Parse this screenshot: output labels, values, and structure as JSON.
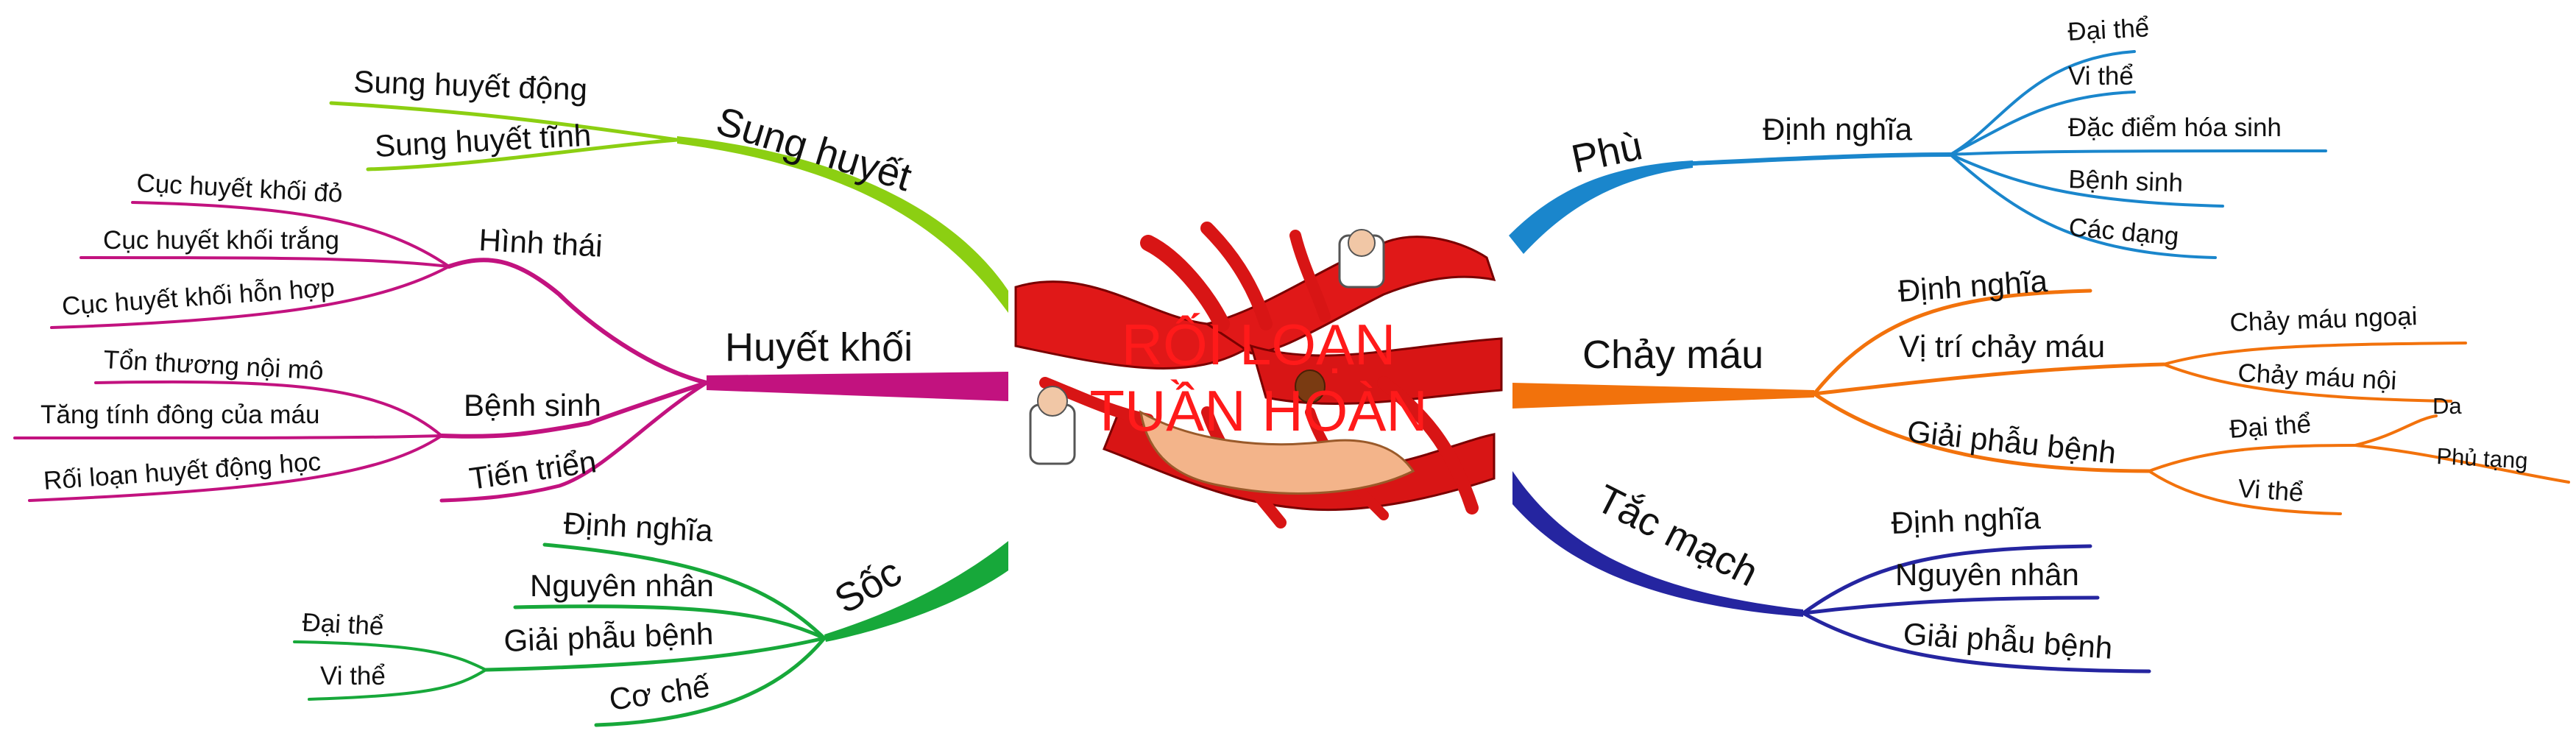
{
  "title": [
    "RỐI LOẠN",
    "TUẦN HOÀN"
  ],
  "colors": {
    "sung_huyet": "#8ccf12",
    "huyet_khoi": "#c2127f",
    "soc": "#17a83a",
    "phu": "#1a86cc",
    "chay_mau": "#f2720c",
    "tac_mach": "#2525a0",
    "title": "#ff1a1a"
  },
  "branches": {
    "sung_huyet": {
      "label": "Sung huyết",
      "children": [
        "Sung huyết động",
        "Sung huyết tĩnh"
      ]
    },
    "huyet_khoi": {
      "label": "Huyết khối",
      "hinh_thai": {
        "label": "Hình thái",
        "children": [
          "Cục huyết khối đỏ",
          "Cục huyết khối trắng",
          "Cục huyết khối hỗn hợp"
        ]
      },
      "benh_sinh": {
        "label": "Bệnh sinh",
        "children": [
          "Tổn thương nội mô",
          "Tăng tính đông của máu",
          "Rối loạn huyết động học"
        ]
      },
      "tien_trien": "Tiến triển"
    },
    "soc": {
      "label": "Sốc",
      "dinh_nghia": "Định nghĩa",
      "nguyen_nhan": "Nguyên nhân",
      "giai_phau_benh": {
        "label": "Giải phẫu bệnh",
        "children": [
          "Đại thể",
          "Vi thể"
        ]
      },
      "co_che": "Cơ chế"
    },
    "phu": {
      "label": "Phù",
      "dinh_nghia": {
        "label": "Định nghĩa",
        "children": [
          "Đại thể",
          "Vi thể",
          "Đặc điểm hóa sinh",
          "Bệnh sinh",
          "Các dạng"
        ]
      }
    },
    "chay_mau": {
      "label": "Chảy máu",
      "dinh_nghia": "Định nghĩa",
      "vi_tri": {
        "label": "Vị trí chảy máu",
        "children": [
          "Chảy máu ngoại",
          "Chảy máu nội"
        ]
      },
      "giai_phau_benh": {
        "label": "Giải phẫu bệnh",
        "dai_the": {
          "label": "Đại thể",
          "children": [
            "Da",
            "Phủ tạng"
          ]
        },
        "vi_the": "Vi thể"
      }
    },
    "tac_mach": {
      "label": "Tắc mạch",
      "children": [
        "Định nghĩa",
        "Nguyên nhân",
        "Giải phẫu bệnh"
      ]
    }
  }
}
